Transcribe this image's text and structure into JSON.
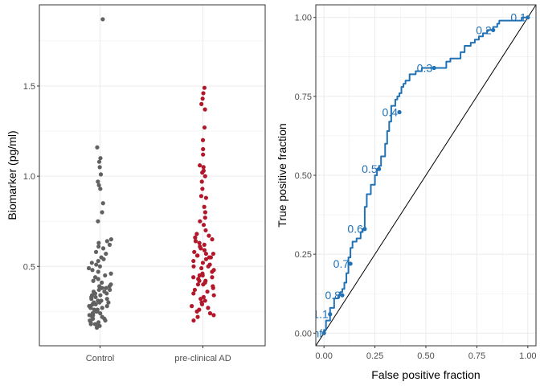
{
  "colors": {
    "control": "#616161",
    "preclinical": "#b2182b",
    "roc": "#2171b5",
    "grid": "#ebebeb",
    "panel_border": "#333333",
    "diagonal": "#000000"
  },
  "chart_data": [
    {
      "type": "scatter",
      "title": "",
      "xlabel": "",
      "ylabel": "Biomarker (pg/ml)",
      "categories": [
        "Control",
        "pre-clinical AD"
      ],
      "ylim": [
        0.06,
        1.95
      ],
      "yticks": [
        0.5,
        1.0,
        1.5
      ],
      "ytick_labels": [
        "0.5",
        "1.0",
        "1.5"
      ],
      "grid": true,
      "series": [
        {
          "category": "Control",
          "values": [
            1.87,
            1.16,
            1.1,
            1.08,
            1.05,
            1.01,
            0.97,
            0.95,
            0.93,
            0.85,
            0.8,
            0.75,
            0.65,
            0.64,
            0.63,
            0.62,
            0.61,
            0.6,
            0.58,
            0.57,
            0.55,
            0.54,
            0.53,
            0.52,
            0.51,
            0.5,
            0.49,
            0.48,
            0.47,
            0.46,
            0.45,
            0.44,
            0.43,
            0.42,
            0.41,
            0.4,
            0.39,
            0.39,
            0.38,
            0.38,
            0.37,
            0.37,
            0.36,
            0.36,
            0.35,
            0.35,
            0.34,
            0.34,
            0.33,
            0.33,
            0.32,
            0.32,
            0.31,
            0.31,
            0.3,
            0.3,
            0.3,
            0.29,
            0.29,
            0.29,
            0.28,
            0.28,
            0.28,
            0.27,
            0.27,
            0.27,
            0.26,
            0.26,
            0.25,
            0.25,
            0.24,
            0.24,
            0.23,
            0.23,
            0.22,
            0.22,
            0.21,
            0.21,
            0.2,
            0.2,
            0.19,
            0.19,
            0.18,
            0.18,
            0.17,
            0.17,
            0.16
          ]
        },
        {
          "category": "pre-clinical AD",
          "values": [
            1.49,
            1.46,
            1.43,
            1.4,
            1.37,
            1.27,
            1.2,
            1.15,
            1.12,
            1.06,
            1.05,
            1.03,
            1.02,
            1.0,
            0.97,
            0.93,
            0.89,
            0.88,
            0.83,
            0.8,
            0.77,
            0.75,
            0.73,
            0.7,
            0.68,
            0.67,
            0.66,
            0.65,
            0.64,
            0.63,
            0.62,
            0.61,
            0.6,
            0.59,
            0.58,
            0.57,
            0.57,
            0.56,
            0.56,
            0.55,
            0.55,
            0.54,
            0.53,
            0.52,
            0.51,
            0.5,
            0.5,
            0.49,
            0.48,
            0.47,
            0.46,
            0.45,
            0.45,
            0.44,
            0.44,
            0.43,
            0.42,
            0.42,
            0.41,
            0.4,
            0.4,
            0.39,
            0.38,
            0.37,
            0.36,
            0.35,
            0.34,
            0.33,
            0.32,
            0.31,
            0.3,
            0.29,
            0.28,
            0.27,
            0.26,
            0.25,
            0.24,
            0.23,
            0.22,
            0.2
          ]
        }
      ]
    },
    {
      "type": "line",
      "title": "",
      "xlabel": "False positive fraction",
      "ylabel": "True positive fraction",
      "xlim": [
        -0.04,
        1.04
      ],
      "ylim": [
        -0.04,
        1.04
      ],
      "xticks": [
        0,
        0.25,
        0.5,
        0.75,
        1
      ],
      "xtick_labels": [
        "0.00",
        "0.25",
        "0.50",
        "0.75",
        "1.00"
      ],
      "yticks": [
        0,
        0.25,
        0.5,
        0.75,
        1
      ],
      "ytick_labels": [
        "0.00",
        "0.25",
        "0.50",
        "0.75",
        "1.00"
      ],
      "grid": true,
      "diagonal": true,
      "roc_curve": {
        "x": [
          0,
          0.0,
          0.01,
          0.01,
          0.03,
          0.03,
          0.05,
          0.05,
          0.07,
          0.08,
          0.09,
          0.1,
          0.11,
          0.12,
          0.12,
          0.13,
          0.14,
          0.16,
          0.18,
          0.19,
          0.2,
          0.2,
          0.21,
          0.23,
          0.25,
          0.26,
          0.27,
          0.28,
          0.3,
          0.31,
          0.32,
          0.33,
          0.33,
          0.35,
          0.36,
          0.37,
          0.38,
          0.39,
          0.4,
          0.42,
          0.42,
          0.44,
          0.45,
          0.46,
          0.47,
          0.48,
          0.5,
          0.51,
          0.53,
          0.55,
          0.57,
          0.58,
          0.6,
          0.62,
          0.65,
          0.66,
          0.67,
          0.69,
          0.72,
          0.74,
          0.76,
          0.78,
          0.8,
          0.82,
          0.83,
          0.85,
          0.86,
          0.89,
          0.92,
          0.94,
          0.97,
          0.98,
          1.0
        ],
        "y": [
          0,
          0.01,
          0.03,
          0.04,
          0.06,
          0.08,
          0.09,
          0.11,
          0.12,
          0.13,
          0.14,
          0.16,
          0.19,
          0.22,
          0.24,
          0.27,
          0.29,
          0.3,
          0.32,
          0.33,
          0.36,
          0.4,
          0.44,
          0.47,
          0.5,
          0.52,
          0.53,
          0.56,
          0.6,
          0.64,
          0.67,
          0.7,
          0.72,
          0.74,
          0.75,
          0.76,
          0.78,
          0.79,
          0.8,
          0.8,
          0.82,
          0.82,
          0.83,
          0.83,
          0.83,
          0.84,
          0.84,
          0.84,
          0.84,
          0.84,
          0.84,
          0.84,
          0.86,
          0.87,
          0.87,
          0.87,
          0.89,
          0.91,
          0.92,
          0.93,
          0.94,
          0.95,
          0.96,
          0.96,
          0.97,
          0.98,
          0.99,
          0.99,
          0.99,
          0.99,
          1.0,
          1.0,
          1.0
        ]
      },
      "cutoffs": [
        {
          "label": "0.1",
          "x": 1.0,
          "y": 1.0
        },
        {
          "label": "0.2",
          "x": 0.83,
          "y": 0.96
        },
        {
          "label": "0.3",
          "x": 0.54,
          "y": 0.84
        },
        {
          "label": "0.4",
          "x": 0.37,
          "y": 0.7
        },
        {
          "label": "0.5",
          "x": 0.27,
          "y": 0.52
        },
        {
          "label": "0.6",
          "x": 0.2,
          "y": 0.33
        },
        {
          "label": "0.7",
          "x": 0.13,
          "y": 0.22
        },
        {
          "label": "0.8",
          "x": 0.09,
          "y": 0.12
        },
        {
          "label": "1.1",
          "x": 0.03,
          "y": 0.06
        },
        {
          "label": "Inf",
          "x": 0.0,
          "y": 0.0
        }
      ]
    }
  ]
}
